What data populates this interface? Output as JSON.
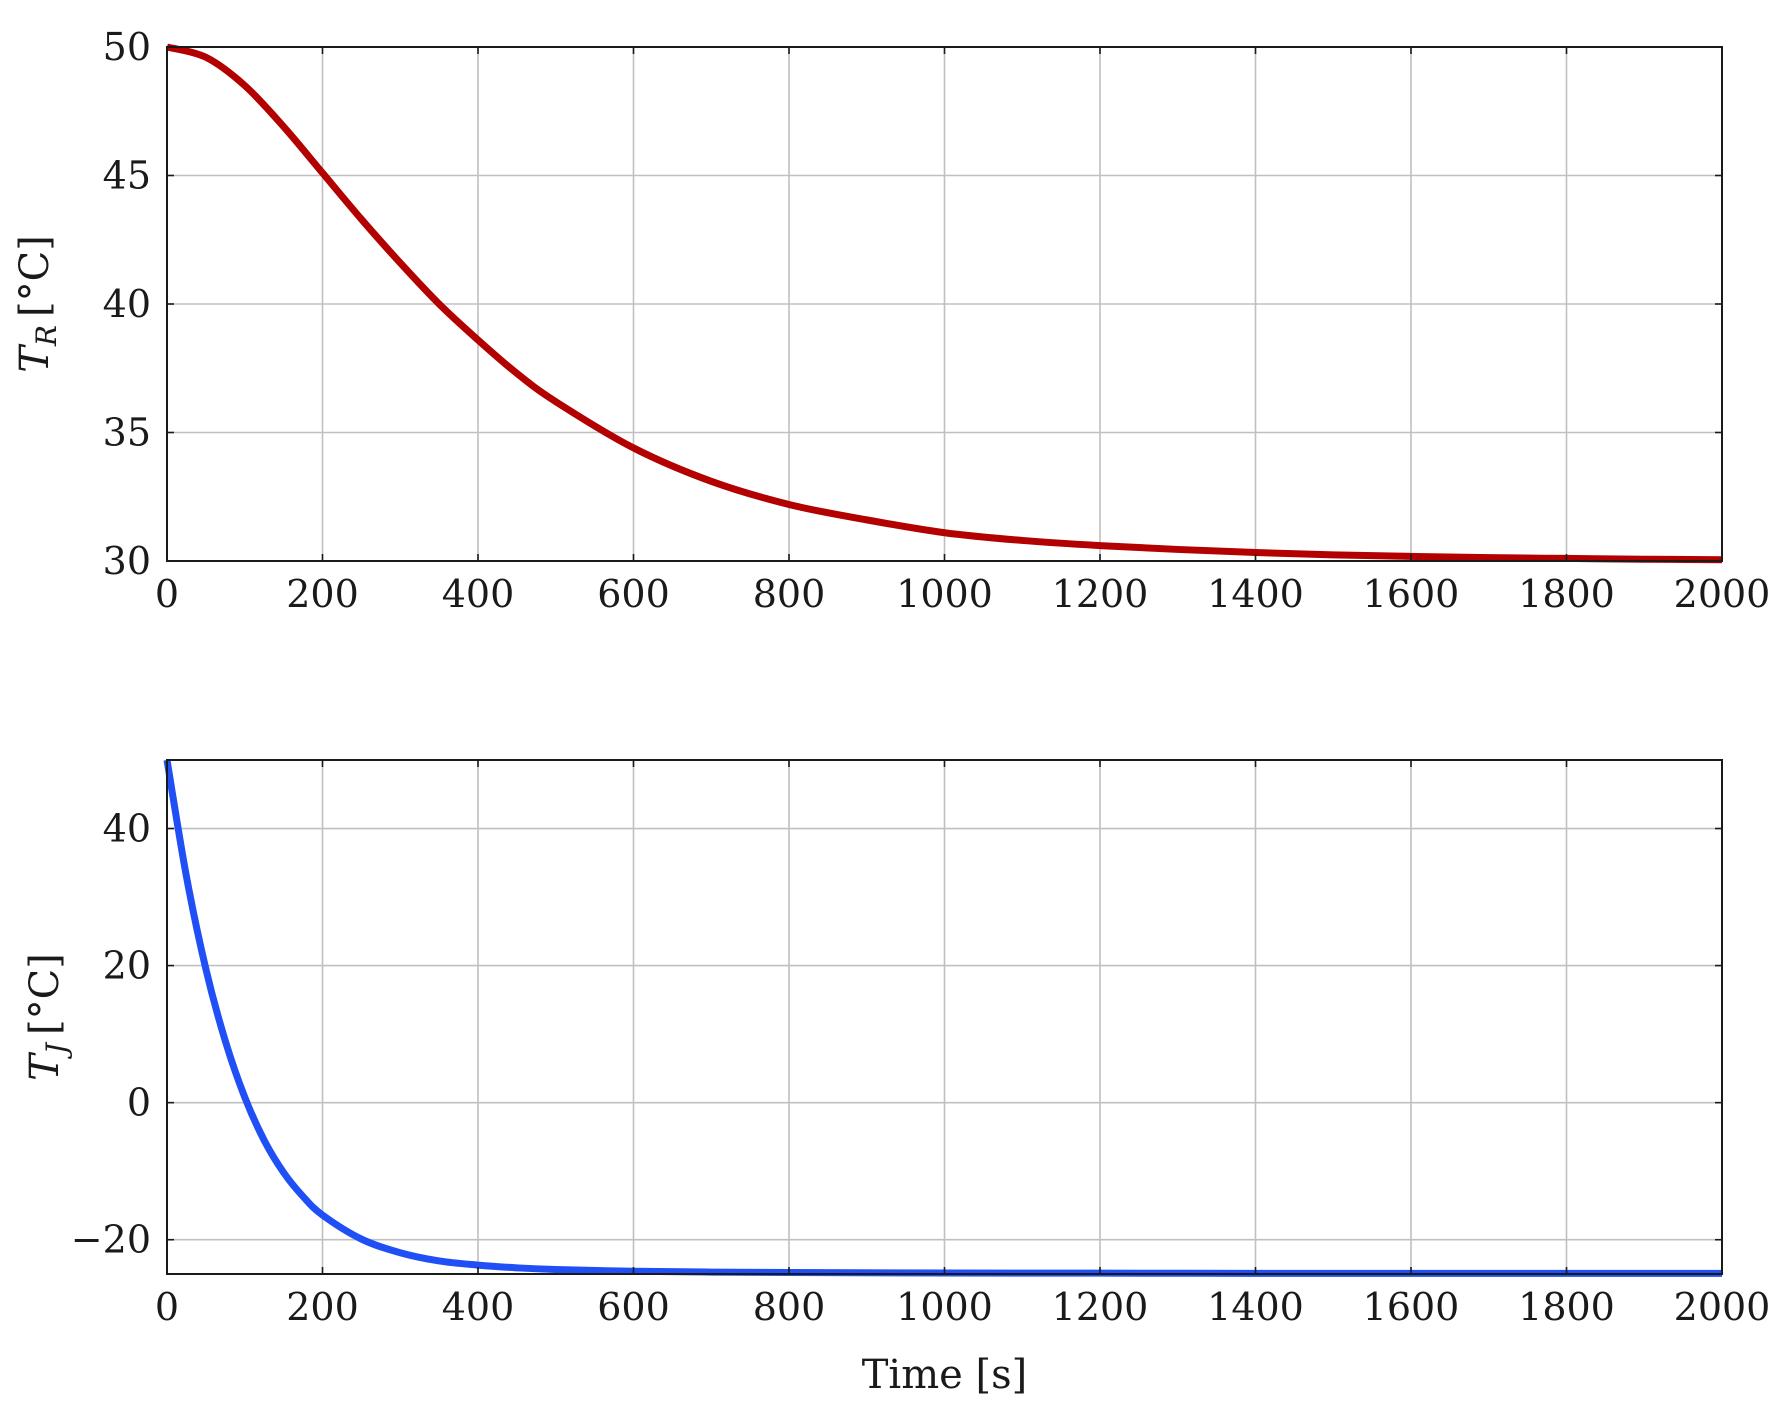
{
  "chart_data": [
    {
      "type": "line",
      "ylabel_main": "T",
      "ylabel_sub": "R",
      "ylabel_unit": "[°C]",
      "xlabel": "",
      "xlim": [
        0,
        2000
      ],
      "ylim": [
        30,
        50
      ],
      "xticks": [
        0,
        200,
        400,
        600,
        800,
        1000,
        1200,
        1400,
        1600,
        1800,
        2000
      ],
      "yticks": [
        30,
        35,
        40,
        45,
        50
      ],
      "grid": true,
      "series": [
        {
          "color": "#b30000",
          "x": [
            0,
            50,
            100,
            150,
            200,
            250,
            300,
            350,
            400,
            450,
            500,
            600,
            700,
            800,
            900,
            1000,
            1100,
            1200,
            1300,
            1400,
            1500,
            1600,
            1700,
            1800,
            1900,
            2000
          ],
          "y": [
            50,
            49.6,
            48.5,
            46.9,
            45.1,
            43.3,
            41.6,
            40.0,
            38.6,
            37.3,
            36.2,
            34.4,
            33.1,
            32.2,
            31.6,
            31.1,
            30.8,
            30.6,
            30.45,
            30.33,
            30.24,
            30.18,
            30.13,
            30.1,
            30.07,
            30.05
          ]
        }
      ]
    },
    {
      "type": "line",
      "ylabel_main": "T",
      "ylabel_sub": "J",
      "ylabel_unit": "[°C]",
      "xlabel": "Time [s]",
      "xlim": [
        0,
        2000
      ],
      "ylim": [
        -25,
        50
      ],
      "xticks": [
        0,
        200,
        400,
        600,
        800,
        1000,
        1200,
        1400,
        1600,
        1800,
        2000
      ],
      "yticks": [
        -20,
        0,
        20,
        40
      ],
      "ytick_labels": [
        "−20",
        "0",
        "20",
        "40"
      ],
      "grid": true,
      "series": [
        {
          "color": "#1f4ff5",
          "x": [
            0,
            25,
            50,
            75,
            100,
            125,
            150,
            175,
            200,
            250,
            300,
            350,
            400,
            450,
            500,
            600,
            700,
            800,
            1000,
            1200,
            1400,
            1600,
            1800,
            2000
          ],
          "y": [
            50,
            33.0,
            19.5,
            9.0,
            0.8,
            -5.5,
            -10.2,
            -13.7,
            -16.4,
            -19.9,
            -21.9,
            -23.1,
            -23.7,
            -24.1,
            -24.35,
            -24.6,
            -24.72,
            -24.78,
            -24.85,
            -24.88,
            -24.9,
            -24.9,
            -24.9,
            -24.9
          ]
        }
      ]
    }
  ]
}
